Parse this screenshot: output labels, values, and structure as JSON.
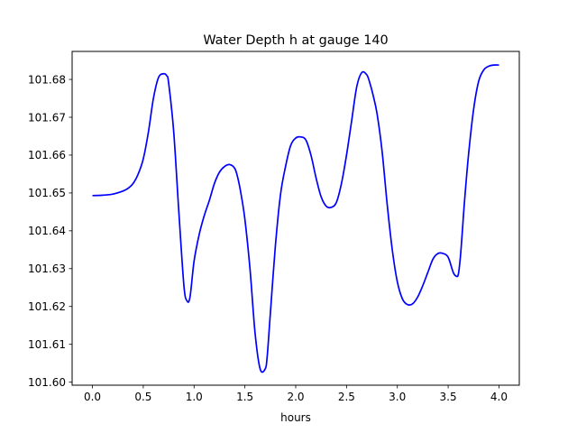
{
  "chart_data": {
    "type": "line",
    "title": "Water Depth h at gauge 140",
    "xlabel": "hours",
    "ylabel": "",
    "xlim": [
      -0.2,
      4.2
    ],
    "ylim": [
      101.5992,
      101.6874
    ],
    "xticks": [
      0.0,
      0.5,
      1.0,
      1.5,
      2.0,
      2.5,
      3.0,
      3.5,
      4.0
    ],
    "xtick_labels": [
      "0.0",
      "0.5",
      "1.0",
      "1.5",
      "2.0",
      "2.5",
      "3.0",
      "3.5",
      "4.0"
    ],
    "yticks": [
      101.6,
      101.61,
      101.62,
      101.63,
      101.64,
      101.65,
      101.66,
      101.67,
      101.68
    ],
    "ytick_labels": [
      "101.60",
      "101.61",
      "101.62",
      "101.63",
      "101.64",
      "101.65",
      "101.66",
      "101.67",
      "101.68"
    ],
    "grid": false,
    "series": [
      {
        "color": "#0000ff",
        "x": [
          0.0,
          0.1,
          0.2,
          0.3,
          0.35,
          0.4,
          0.45,
          0.5,
          0.55,
          0.6,
          0.65,
          0.7,
          0.73,
          0.75,
          0.8,
          0.85,
          0.9,
          0.93,
          0.96,
          1.0,
          1.05,
          1.1,
          1.15,
          1.2,
          1.25,
          1.3,
          1.35,
          1.4,
          1.43,
          1.46,
          1.5,
          1.55,
          1.6,
          1.65,
          1.7,
          1.72,
          1.75,
          1.8,
          1.85,
          1.9,
          1.95,
          2.0,
          2.05,
          2.1,
          2.15,
          2.2,
          2.25,
          2.3,
          2.35,
          2.4,
          2.45,
          2.5,
          2.55,
          2.6,
          2.65,
          2.7,
          2.73,
          2.76,
          2.8,
          2.85,
          2.9,
          2.95,
          3.0,
          3.05,
          3.1,
          3.15,
          3.2,
          3.25,
          3.3,
          3.35,
          3.4,
          3.45,
          3.5,
          3.55,
          3.58,
          3.6,
          3.62,
          3.64,
          3.66,
          3.7,
          3.75,
          3.8,
          3.85,
          3.9,
          3.95,
          4.0
        ],
        "y": [
          101.6493,
          101.6494,
          101.6497,
          101.6505,
          101.6512,
          101.6525,
          101.655,
          101.659,
          101.666,
          101.675,
          101.6805,
          101.6815,
          101.681,
          101.679,
          101.666,
          101.645,
          101.6255,
          101.6215,
          101.6225,
          101.632,
          101.639,
          101.644,
          101.648,
          101.6525,
          101.6555,
          101.657,
          101.6575,
          101.6565,
          101.654,
          101.65,
          101.643,
          101.63,
          101.613,
          101.6035,
          101.6035,
          101.607,
          101.618,
          101.636,
          101.6495,
          101.657,
          101.6625,
          101.6645,
          101.6648,
          101.664,
          101.66,
          101.654,
          101.649,
          101.6465,
          101.6462,
          101.6475,
          101.6525,
          101.66,
          101.669,
          101.678,
          101.6818,
          101.6812,
          101.679,
          101.676,
          101.671,
          101.661,
          101.647,
          101.635,
          101.6265,
          101.622,
          101.6205,
          101.6207,
          101.6225,
          101.6255,
          101.629,
          101.6325,
          101.634,
          101.634,
          101.633,
          101.629,
          101.628,
          101.6285,
          101.633,
          101.64,
          101.6475,
          101.66,
          101.672,
          101.6795,
          101.6825,
          101.6835,
          101.6838,
          101.6838
        ]
      }
    ]
  }
}
